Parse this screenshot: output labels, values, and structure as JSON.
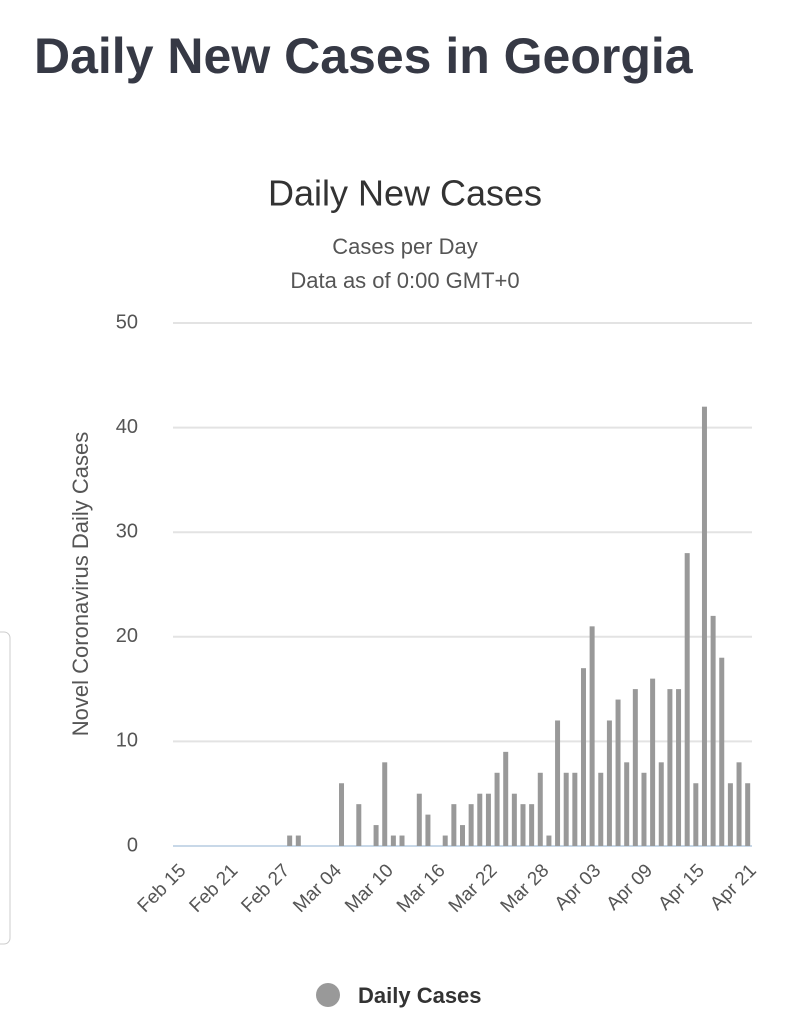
{
  "header": {
    "title": "Daily New Cases in Georgia"
  },
  "chart_data": {
    "type": "bar",
    "title": "Daily New Cases",
    "subtitle": [
      "Cases per Day",
      "Data as of 0:00 GMT+0"
    ],
    "y_label": "Novel Coronavirus Daily Cases",
    "categories": [
      "Feb 15",
      null,
      null,
      null,
      null,
      null,
      "Feb 21",
      null,
      null,
      null,
      null,
      null,
      "Feb 27",
      null,
      null,
      null,
      null,
      null,
      "Mar 04",
      null,
      null,
      null,
      null,
      null,
      "Mar 10",
      null,
      null,
      null,
      null,
      null,
      "Mar 16",
      null,
      null,
      null,
      null,
      null,
      "Mar 22",
      null,
      null,
      null,
      null,
      null,
      "Mar 28",
      null,
      null,
      null,
      null,
      null,
      "Apr 03",
      null,
      null,
      null,
      null,
      null,
      "Apr 09",
      null,
      null,
      null,
      null,
      null,
      "Apr 15",
      null,
      null,
      null,
      null,
      null,
      "Apr 21"
    ],
    "series": [
      {
        "name": "Daily Cases",
        "color": "#999999",
        "values": [
          0,
          0,
          0,
          0,
          0,
          0,
          0,
          0,
          0,
          0,
          0,
          0,
          0,
          1,
          1,
          0,
          0,
          0,
          0,
          6,
          0,
          4,
          0,
          2,
          8,
          1,
          1,
          0,
          5,
          3,
          0,
          1,
          4,
          2,
          4,
          5,
          5,
          7,
          9,
          5,
          4,
          4,
          7,
          1,
          12,
          7,
          7,
          17,
          21,
          7,
          12,
          14,
          8,
          15,
          7,
          16,
          8,
          15,
          15,
          28,
          6,
          42,
          22,
          18,
          6,
          8,
          6
        ]
      }
    ],
    "ylim": [
      0,
      50
    ],
    "yticks": [
      0,
      10,
      20,
      30,
      40,
      50
    ],
    "grid": true
  }
}
